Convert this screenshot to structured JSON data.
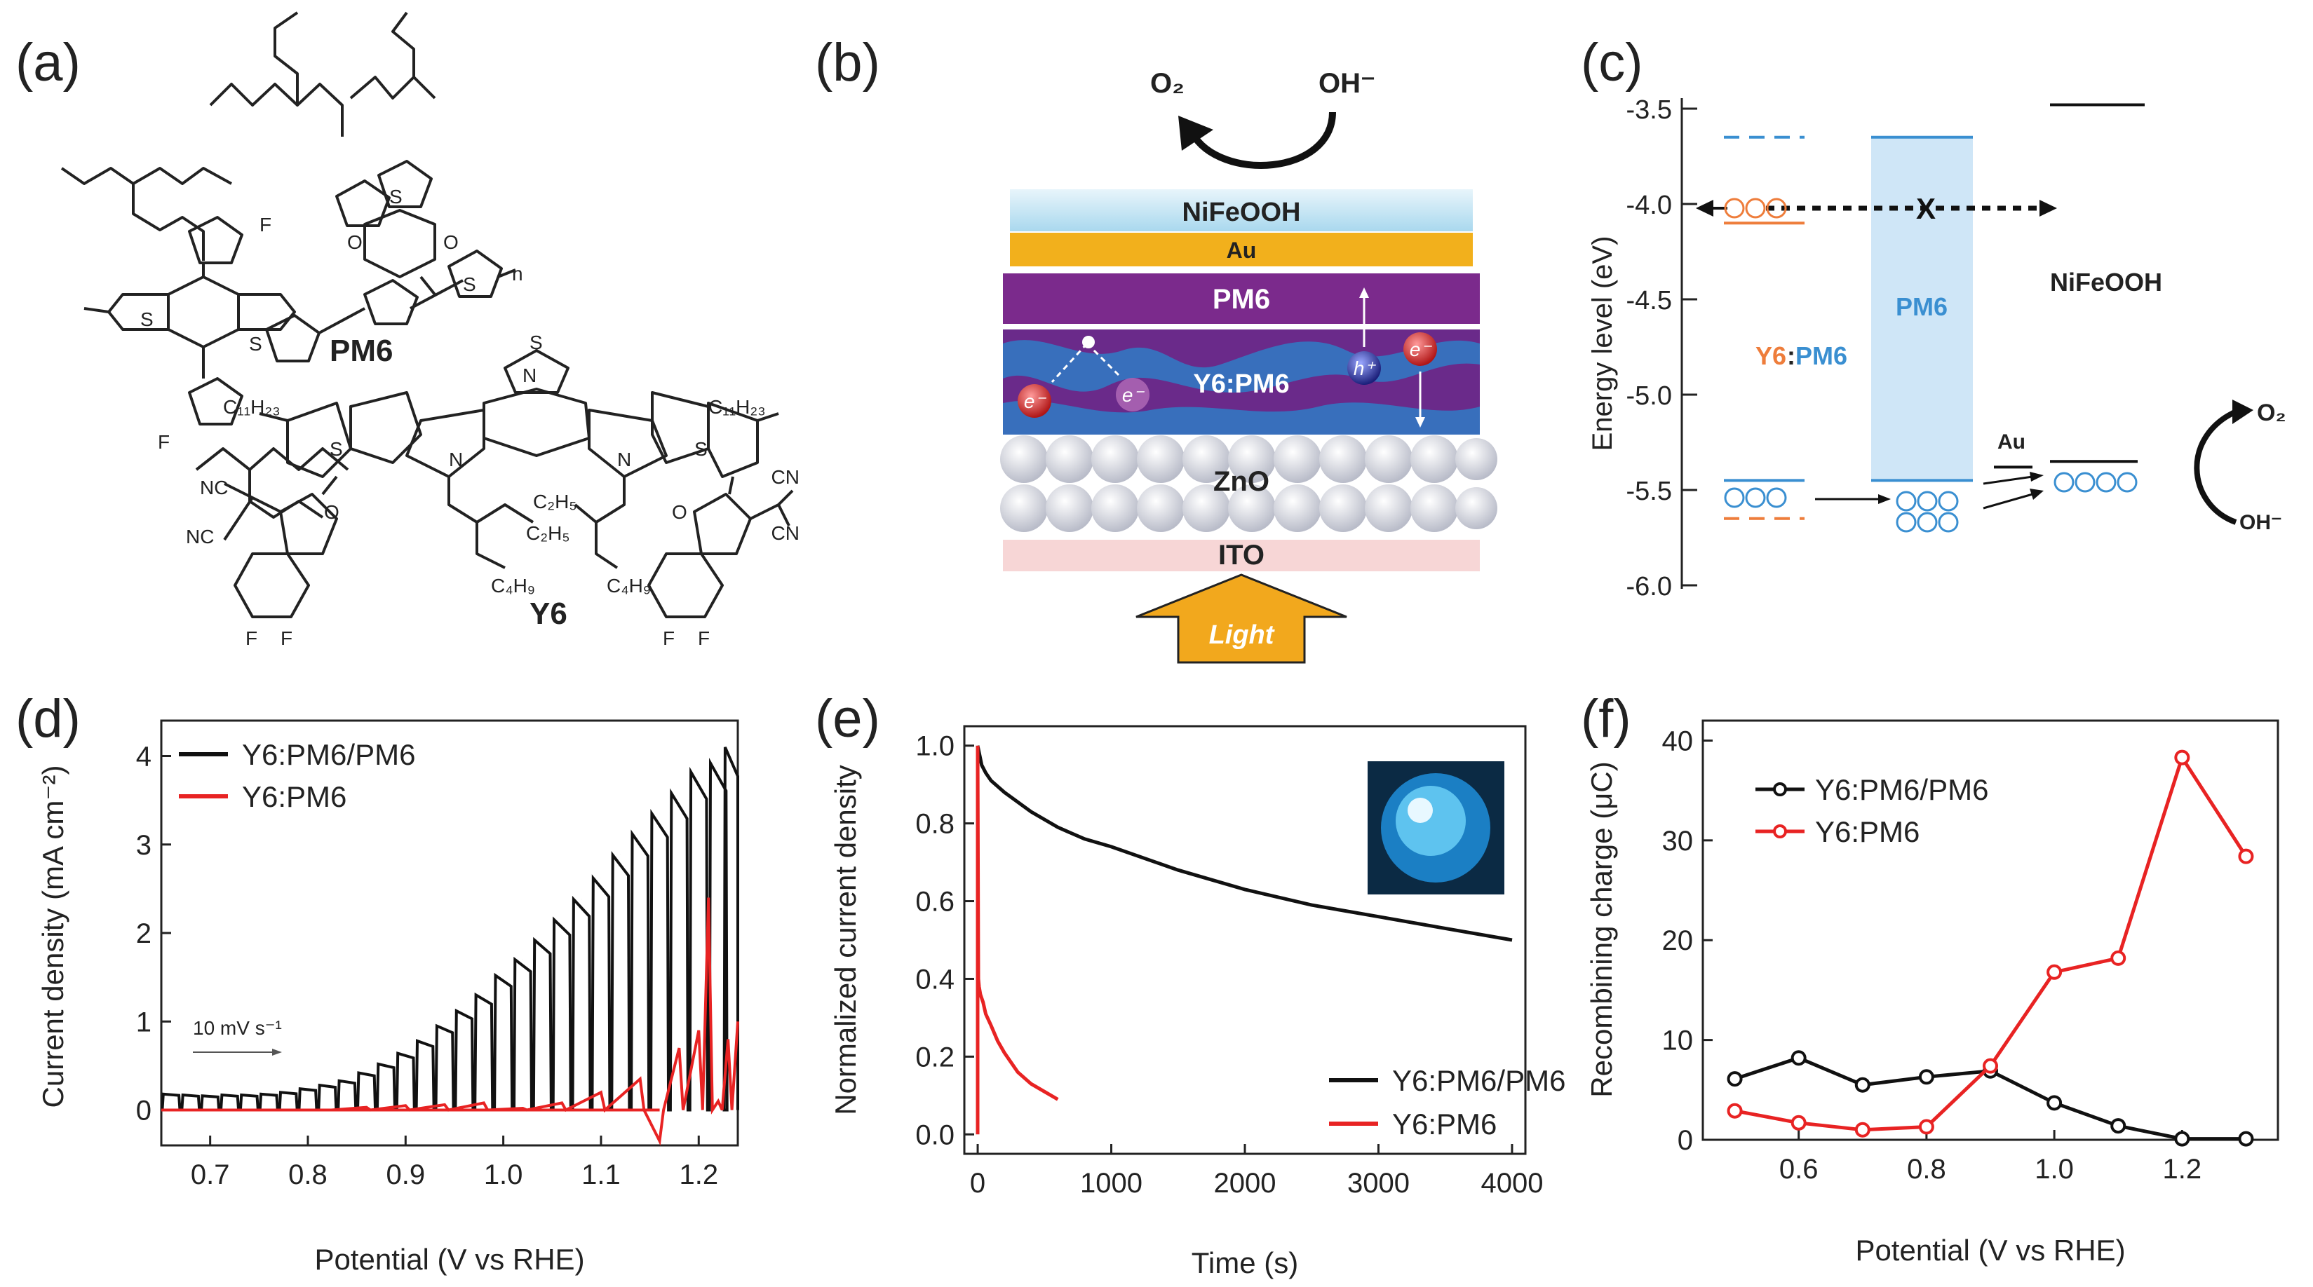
{
  "panel_labels": {
    "a": "(a)",
    "b": "(b)",
    "c": "(c)",
    "d": "(d)",
    "e": "(e)",
    "f": "(f)"
  },
  "panel_a": {
    "pm6_label": "PM6",
    "y6_label": "Y6",
    "atoms": {
      "F": "F",
      "S": "S",
      "O": "O",
      "N": "N",
      "NC": "NC",
      "CN": "CN",
      "C11H23": "C₁₁H₂₃",
      "C2H5": "C₂H₅",
      "C4H9": "C₄H₉",
      "n": "n"
    }
  },
  "panel_b": {
    "o2": "O₂",
    "oh": "OH⁻",
    "layers": {
      "nifeooh": "NiFeOOH",
      "au": "Au",
      "pm6": "PM6",
      "y6pm6": "Y6:PM6",
      "zno": "ZnO",
      "ito": "ITO"
    },
    "light": "Light",
    "e_minus": "e⁻",
    "h_plus": "h⁺",
    "colors": {
      "nifeooh": "#bfe3f2",
      "au": "#f2b01c",
      "pm6": "#7b2a8c",
      "active": "#6a2a8a",
      "blue": "#2f7bc4",
      "ito": "#f7d6d6",
      "light": "#f2a81d"
    }
  },
  "panel_c": {
    "ylabel": "Energy level (eV)",
    "yticks": [
      "-3.5",
      "-4.0",
      "-4.5",
      "-5.0",
      "-5.5",
      "-6.0"
    ],
    "ylim": [
      -6.0,
      -3.5
    ],
    "labels": {
      "y6": "Y6",
      "colon": ":",
      "pm6_a": "PM6",
      "pm6_b": "PM6",
      "nifeooh": "NiFeOOH",
      "au": "Au",
      "o2": "O₂",
      "oh": "OH⁻",
      "x": "X"
    },
    "levels": {
      "y6_lumo": -4.1,
      "y6_homo": -5.65,
      "pm6_lumo_dash": -3.65,
      "pm6_homo_in": -5.45,
      "pm6_lumo": -3.65,
      "pm6_homo": -5.45,
      "au": -5.38,
      "nifeooh_cb": -3.48,
      "nifeooh_vb": -5.35
    },
    "colors": {
      "orange": "#ee7d3b",
      "blue": "#3a8fd1",
      "band": "#cfe6f7"
    }
  },
  "chart_data": [
    {
      "panel": "d",
      "type": "line",
      "xlabel": "Potential (V vs RHE)",
      "ylabel": "Current density (mA cm⁻²)",
      "xlim": [
        0.65,
        1.24
      ],
      "ylim": [
        -0.4,
        4.4
      ],
      "xticks": [
        "0.7",
        "0.8",
        "0.9",
        "1.0",
        "1.1",
        "1.2"
      ],
      "yticks": [
        "0",
        "1",
        "2",
        "3",
        "4"
      ],
      "annotation": "10 mV s⁻¹",
      "series": [
        {
          "name": "Y6:PM6/PM6",
          "color": "#111111",
          "x": [
            0.66,
            0.68,
            0.7,
            0.72,
            0.74,
            0.76,
            0.78,
            0.8,
            0.82,
            0.84,
            0.86,
            0.88,
            0.9,
            0.92,
            0.94,
            0.96,
            0.98,
            1.0,
            1.02,
            1.04,
            1.06,
            1.08,
            1.1,
            1.12,
            1.14,
            1.16,
            1.18,
            1.2,
            1.22,
            1.235
          ],
          "peaks": [
            0.18,
            0.17,
            0.16,
            0.17,
            0.17,
            0.18,
            0.2,
            0.24,
            0.28,
            0.33,
            0.42,
            0.52,
            0.64,
            0.78,
            0.95,
            1.12,
            1.3,
            1.52,
            1.7,
            1.92,
            2.15,
            2.38,
            2.62,
            2.88,
            3.12,
            3.35,
            3.58,
            3.82,
            3.92,
            4.1
          ]
        },
        {
          "name": "Y6:PM6",
          "color": "#e82323",
          "x": [
            0.66,
            0.7,
            0.74,
            0.78,
            0.82,
            0.86,
            0.9,
            0.94,
            0.98,
            1.02,
            1.06,
            1.1,
            1.14,
            1.16,
            1.18,
            1.2,
            1.21,
            1.22,
            1.23,
            1.24
          ],
          "y": [
            0.0,
            0.0,
            0.0,
            0.0,
            0.0,
            0.03,
            0.05,
            0.06,
            0.08,
            0.02,
            0.08,
            0.2,
            0.35,
            -0.35,
            0.7,
            0.9,
            2.4,
            0.1,
            0.8,
            1.0
          ]
        }
      ],
      "legend": "top-left"
    },
    {
      "panel": "e",
      "type": "line",
      "xlabel": "Time (s)",
      "ylabel": "Normalized current density",
      "xlim": [
        -100,
        4100
      ],
      "ylim": [
        -0.05,
        1.05
      ],
      "xticks": [
        "0",
        "1000",
        "2000",
        "3000",
        "4000"
      ],
      "yticks": [
        "0.0",
        "0.2",
        "0.4",
        "0.6",
        "0.8",
        "1.0"
      ],
      "series": [
        {
          "name": "Y6:PM6/PM6",
          "color": "#111111",
          "x": [
            0,
            30,
            60,
            100,
            200,
            400,
            600,
            800,
            1000,
            1500,
            2000,
            2500,
            3000,
            3500,
            4000
          ],
          "y": [
            1.0,
            0.95,
            0.93,
            0.91,
            0.88,
            0.83,
            0.79,
            0.76,
            0.74,
            0.68,
            0.63,
            0.59,
            0.56,
            0.53,
            0.5
          ]
        },
        {
          "name": "Y6:PM6",
          "color": "#e82323",
          "x": [
            0,
            5,
            10,
            20,
            40,
            60,
            100,
            150,
            200,
            300,
            400,
            500,
            600
          ],
          "y": [
            1.0,
            0.4,
            0.38,
            0.36,
            0.34,
            0.31,
            0.28,
            0.24,
            0.21,
            0.16,
            0.13,
            0.11,
            0.09
          ]
        }
      ],
      "legend": "bottom-right"
    },
    {
      "panel": "f",
      "type": "line",
      "xlabel": "Potential (V vs RHE)",
      "ylabel": "Recombining charge (μC)",
      "xlim": [
        0.45,
        1.35
      ],
      "ylim": [
        0,
        42
      ],
      "xticks": [
        "0.6",
        "0.8",
        "1.0",
        "1.2"
      ],
      "yticks": [
        "0",
        "10",
        "20",
        "30",
        "40"
      ],
      "series": [
        {
          "name": "Y6:PM6/PM6",
          "color": "#111111",
          "x": [
            0.5,
            0.6,
            0.7,
            0.8,
            0.9,
            1.0,
            1.1,
            1.2,
            1.3
          ],
          "y": [
            6.1,
            8.2,
            5.5,
            6.3,
            6.9,
            3.7,
            1.4,
            0.1,
            0.1
          ]
        },
        {
          "name": "Y6:PM6",
          "color": "#e82323",
          "x": [
            0.5,
            0.6,
            0.7,
            0.8,
            0.9,
            1.0,
            1.1,
            1.2,
            1.3
          ],
          "y": [
            2.9,
            1.7,
            1.0,
            1.3,
            7.4,
            16.8,
            18.2,
            38.3,
            28.4
          ]
        }
      ],
      "legend": "top-left"
    }
  ]
}
